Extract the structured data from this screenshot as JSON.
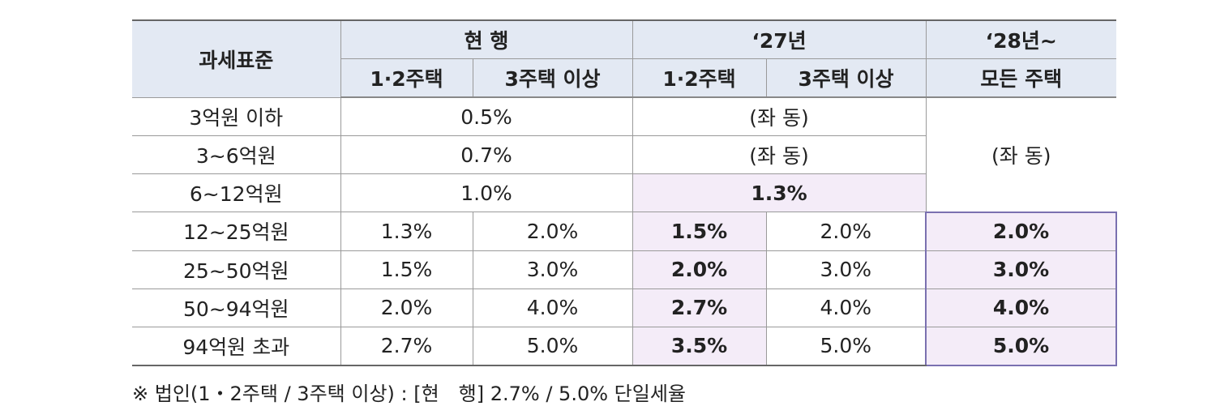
{
  "table": {
    "header": [
      [
        "과세표준",
        "현 행",
        "‘27년",
        "‘28년~"
      ],
      [
        "1·2주택",
        "3주택 이상",
        "1·2주택",
        "3주택 이상",
        "모든 주택"
      ]
    ],
    "rows": [
      [
        "3억원 이하",
        "0.5%",
        "(좌 동)",
        "(좌 동)"
      ],
      [
        "3~6억원",
        "0.7%",
        "(좌 동)"
      ],
      [
        "6~12억원",
        "1.0%",
        "1.3%"
      ],
      [
        "12~25억원",
        "1.3%",
        "2.0%",
        "1.5%",
        "2.0%",
        "2.0%"
      ],
      [
        "25~50억원",
        "1.5%",
        "3.0%",
        "2.0%",
        "3.0%",
        "3.0%"
      ],
      [
        "50~94억원",
        "2.0%",
        "4.0%",
        "2.7%",
        "4.0%",
        "4.0%"
      ],
      [
        "94억원 초과",
        "2.7%",
        "5.0%",
        "3.5%",
        "5.0%",
        "5.0%"
      ]
    ]
  },
  "footnote": "※ 법인(1・2주택 / 3주택 이상) : [현　행] 2.7% / 5.0% 단일세율"
}
